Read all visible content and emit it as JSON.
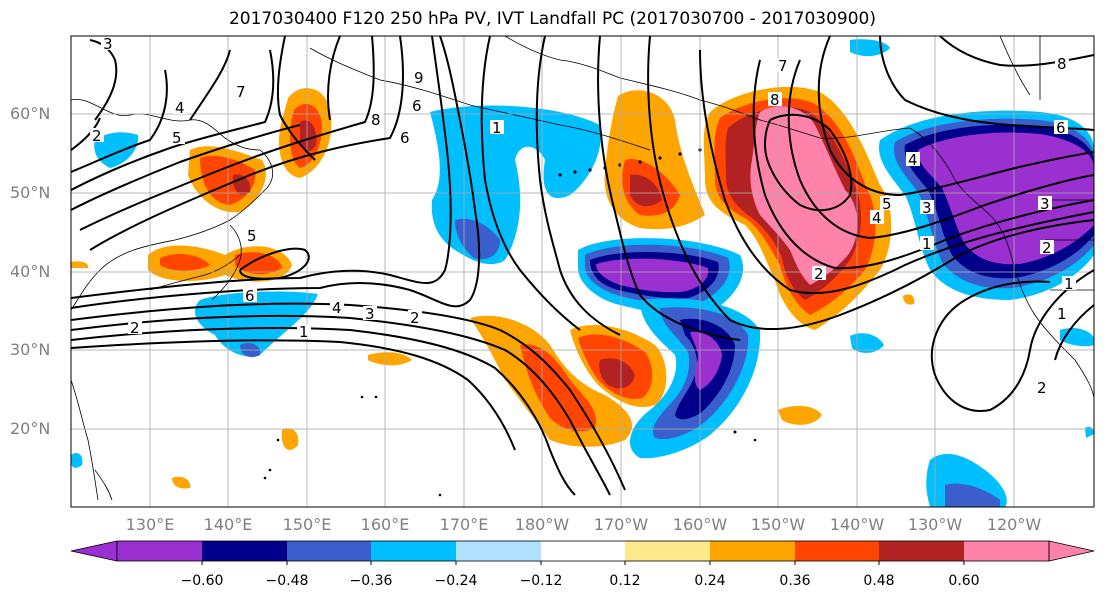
{
  "title": "2017030400 F120 250 hPa PV, IVT Landfall PC (2017030700 - 2017030900)",
  "lat_labels": [
    "60°N",
    "50°N",
    "40°N",
    "30°N",
    "20°N"
  ],
  "lon_labels": [
    "130°E",
    "140°E",
    "150°E",
    "160°E",
    "170°E",
    "180°W",
    "170°W",
    "160°W",
    "150°W",
    "140°W",
    "130°W",
    "120°W"
  ],
  "colorbar": {
    "ticks": [
      "−0.60",
      "−0.48",
      "−0.36",
      "−0.24",
      "−0.12",
      "0.12",
      "0.24",
      "0.36",
      "0.48",
      "0.60"
    ],
    "colors": [
      "#9b30d0",
      "#00008b",
      "#3a5fcd",
      "#00bfff",
      "#b0e2ff",
      "#ffffff",
      "#ffe98a",
      "#ffa500",
      "#ff4500",
      "#b22222",
      "#ff82ab"
    ]
  },
  "contour_labels": [
    "3",
    "2",
    "5",
    "4",
    "7",
    "8",
    "6",
    "9",
    "1",
    "1",
    "2",
    "7",
    "8",
    "6",
    "5",
    "4",
    "3",
    "2",
    "1",
    "6",
    "4",
    "3",
    "2",
    "1",
    "6",
    "5",
    "4",
    "3",
    "2",
    "1",
    "8",
    "2"
  ]
}
